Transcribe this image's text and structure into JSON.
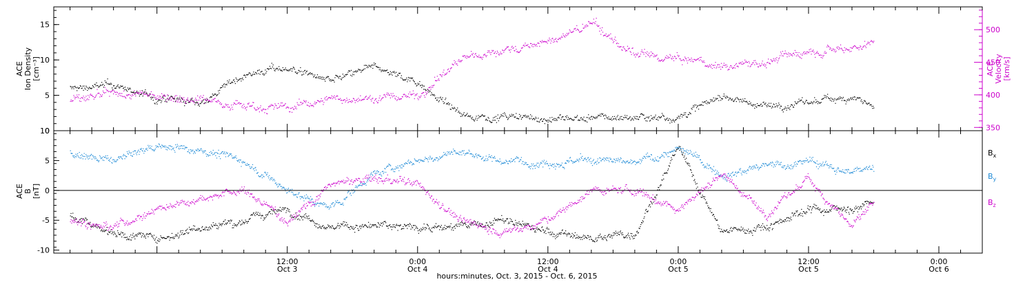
{
  "chart_data": [
    {
      "type": "scatter",
      "panel": "plasma",
      "ylabel_lines": [
        "ACE",
        "Ion Density",
        "[cm⁻³]"
      ],
      "y2label_lines": [
        "ACE",
        "Velocity",
        "[km/s]"
      ],
      "ylim": [
        0,
        17.5
      ],
      "y2lim": [
        345,
        535
      ],
      "yticks": [
        0,
        5,
        10,
        15
      ],
      "y2ticks": [
        350,
        400,
        450,
        500
      ],
      "colors": {
        "density": "#000000",
        "velocity": "#cc00cc"
      },
      "series": [
        {
          "name": "Ion Density",
          "axis": "left",
          "color": "#000000",
          "x": [
            -8,
            -4,
            0,
            4,
            8,
            12,
            16,
            20,
            24,
            28,
            32,
            36,
            40,
            44,
            48,
            52,
            56,
            60,
            64,
            66
          ],
          "y": [
            6.0,
            6.5,
            4.5,
            4.0,
            8.0,
            9.0,
            7.0,
            9.0,
            7.0,
            2.2,
            2.0,
            1.7,
            1.8,
            2.0,
            2.0,
            5.0,
            3.5,
            4.0,
            5.0,
            3.5
          ]
        },
        {
          "name": "Velocity",
          "axis": "right",
          "color": "#cc00cc",
          "x": [
            -8,
            -4,
            0,
            4,
            8,
            12,
            16,
            20,
            24,
            28,
            32,
            36,
            40,
            44,
            48,
            52,
            56,
            60,
            64,
            66
          ],
          "y": [
            390,
            400,
            400,
            395,
            385,
            380,
            395,
            395,
            400,
            455,
            470,
            480,
            510,
            460,
            455,
            445,
            450,
            470,
            475,
            480
          ]
        }
      ]
    },
    {
      "type": "scatter",
      "panel": "magnetic-field",
      "ylabel_lines": [
        "ACE",
        "B",
        "[nT]"
      ],
      "ylim": [
        -10.5,
        10
      ],
      "yticks": [
        -10,
        -5,
        0,
        5,
        10
      ],
      "zero_line": true,
      "series": [
        {
          "name": "Bx",
          "label_main": "B",
          "label_sub": "x",
          "color": "#000000",
          "x": [
            -8,
            -4,
            0,
            4,
            8,
            12,
            16,
            20,
            24,
            28,
            32,
            36,
            40,
            44,
            48,
            52,
            56,
            60,
            64,
            66
          ],
          "y": [
            -4.0,
            -7.0,
            -8.0,
            -6.0,
            -5.0,
            -3.0,
            -6.0,
            -6.0,
            -6.0,
            -6.0,
            -5.0,
            -7.0,
            -8.0,
            -7.0,
            7.0,
            -7.0,
            -6.0,
            -3.0,
            -3.0,
            -2.0
          ]
        },
        {
          "name": "By",
          "label_main": "B",
          "label_sub": "y",
          "color": "#1e8ad6",
          "x": [
            -8,
            -4,
            0,
            4,
            8,
            12,
            16,
            20,
            24,
            28,
            32,
            36,
            40,
            44,
            48,
            52,
            56,
            60,
            64,
            66
          ],
          "y": [
            6.0,
            5.0,
            7.5,
            7.0,
            5.0,
            0.0,
            -3.0,
            3.0,
            5.0,
            6.5,
            5.0,
            5.0,
            5.0,
            4.5,
            7.0,
            3.0,
            4.0,
            5.0,
            3.0,
            4.5
          ]
        },
        {
          "name": "Bz",
          "label_main": "B",
          "label_sub": "z",
          "color": "#cc00cc",
          "x": [
            -8,
            -4,
            0,
            4,
            8,
            12,
            16,
            20,
            24,
            28,
            32,
            36,
            40,
            44,
            48,
            52,
            56,
            60,
            64,
            66
          ],
          "y": [
            -5.0,
            -6.0,
            -3.0,
            -1.0,
            0.0,
            -5.0,
            1.0,
            2.0,
            1.0,
            -5.0,
            -7.0,
            -5.0,
            0.0,
            0.0,
            -3.0,
            3.0,
            -4.0,
            2.0,
            -6.0,
            -2.0
          ]
        }
      ]
    }
  ],
  "x_axis": {
    "range_hours": [
      -9.5,
      76
    ],
    "major_ticks": [
      {
        "hours": 12,
        "time": "12:00",
        "date": "Oct 3"
      },
      {
        "hours": 24,
        "time": "0:00",
        "date": "Oct 4"
      },
      {
        "hours": 36,
        "time": "12:00",
        "date": "Oct 4"
      },
      {
        "hours": 48,
        "time": "0:00",
        "date": "Oct 5"
      },
      {
        "hours": 60,
        "time": "12:00",
        "date": "Oct 5"
      },
      {
        "hours": 72,
        "time": "0:00",
        "date": "Oct 6"
      }
    ],
    "minor_tick_step_hours": 2,
    "xlabel": "hours:minutes, Oct.  3, 2015 - Oct.  6, 2015"
  }
}
